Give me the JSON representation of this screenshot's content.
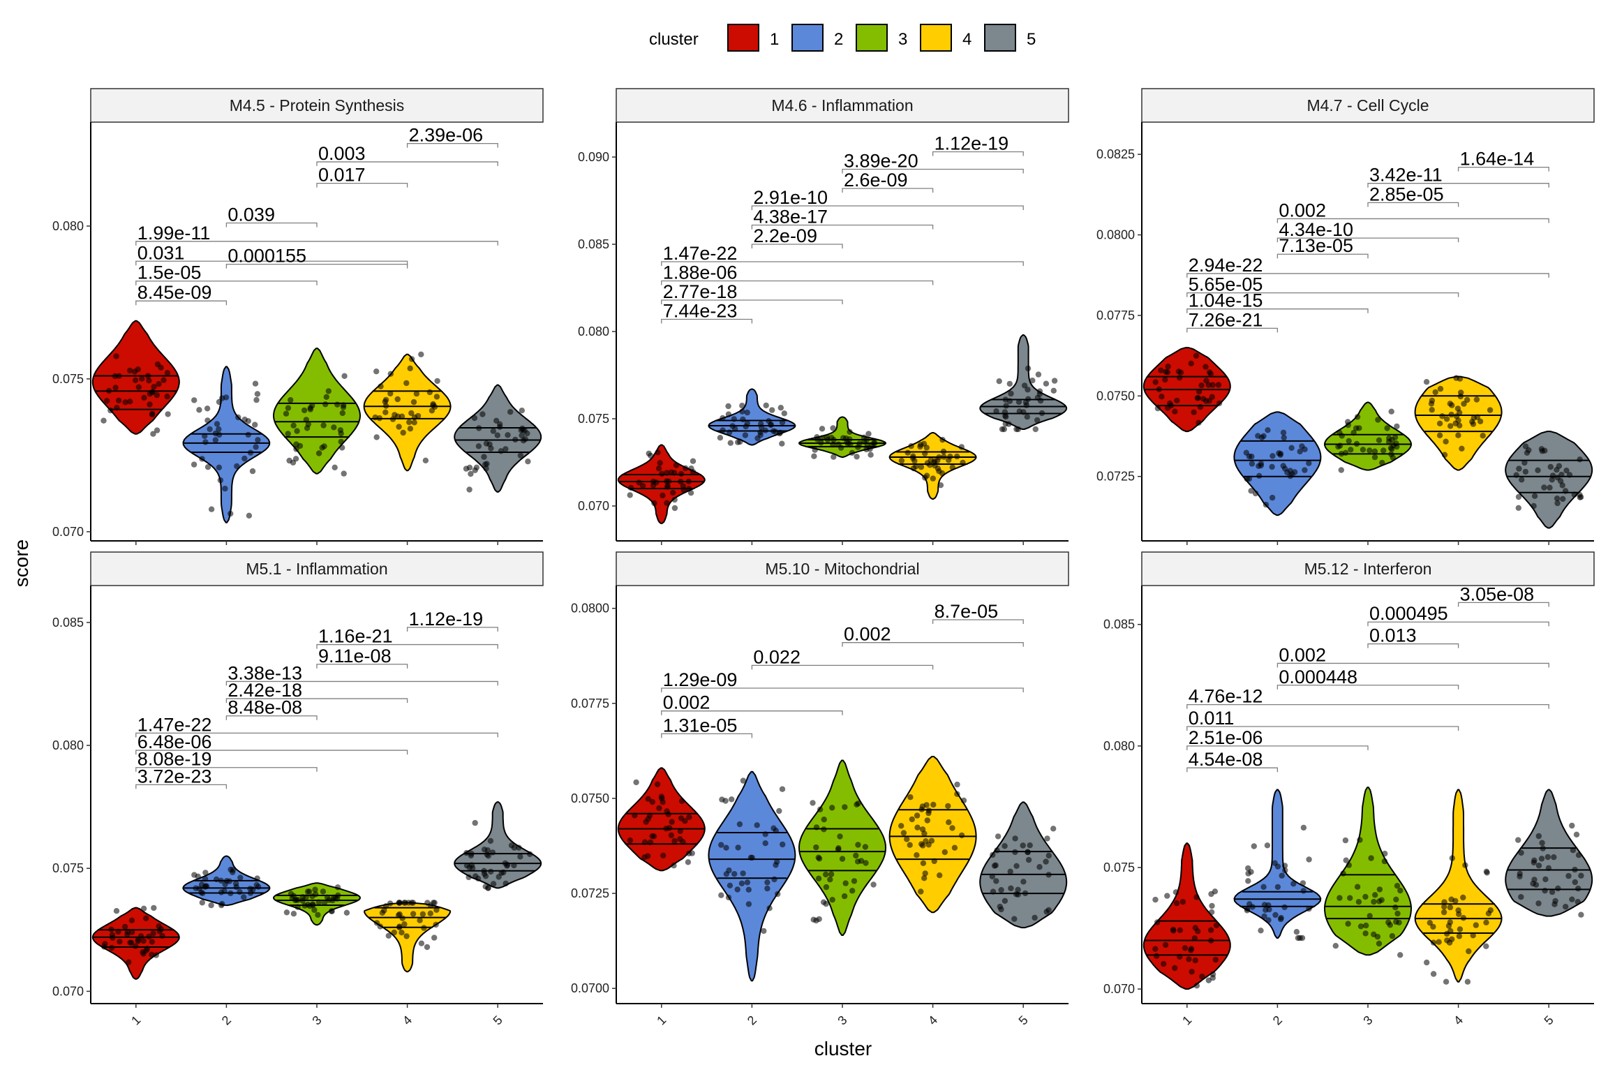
{
  "chart_data": {
    "type": "violin",
    "xlabel": "cluster",
    "ylabel": "score",
    "legend": {
      "title": "cluster",
      "position": "top",
      "entries": [
        {
          "label": "1",
          "color": "#CC0C00"
        },
        {
          "label": "2",
          "color": "#5C88DA"
        },
        {
          "label": "3",
          "color": "#84BD00"
        },
        {
          "label": "4",
          "color": "#FFCD00"
        },
        {
          "label": "5",
          "color": "#7C878E"
        }
      ]
    },
    "categories": [
      "1",
      "2",
      "3",
      "4",
      "5"
    ],
    "panels": [
      {
        "title": "M4.5 - Protein Synthesis",
        "ylim": [
          0.0697,
          0.0834
        ],
        "yticks": [
          0.07,
          0.075,
          0.08
        ],
        "ytick_labels": [
          "0.070",
          "0.075",
          "0.080"
        ],
        "violins": [
          {
            "cluster": "1",
            "min": 0.0732,
            "max": 0.0769,
            "q1": 0.074,
            "median": 0.0746,
            "q3": 0.0751,
            "mode": 0.0749
          },
          {
            "cluster": "2",
            "min": 0.0703,
            "max": 0.0754,
            "q1": 0.0726,
            "median": 0.0729,
            "q3": 0.0732,
            "mode": 0.0729
          },
          {
            "cluster": "3",
            "min": 0.0719,
            "max": 0.076,
            "q1": 0.0731,
            "median": 0.0736,
            "q3": 0.0742,
            "mode": 0.0738
          },
          {
            "cluster": "4",
            "min": 0.072,
            "max": 0.0758,
            "q1": 0.0737,
            "median": 0.0741,
            "q3": 0.0746,
            "mode": 0.0741
          },
          {
            "cluster": "5",
            "min": 0.0713,
            "max": 0.0748,
            "q1": 0.0726,
            "median": 0.073,
            "q3": 0.0734,
            "mode": 0.0731
          }
        ],
        "comparisons": [
          {
            "from": 1,
            "to": 2,
            "label": "8.45e-09",
            "y": 0.07755
          },
          {
            "from": 1,
            "to": 3,
            "label": "1.5e-05",
            "y": 0.0782
          },
          {
            "from": 1,
            "to": 4,
            "label": "0.031",
            "y": 0.07885
          },
          {
            "from": 1,
            "to": 5,
            "label": "1.99e-11",
            "y": 0.0795
          },
          {
            "from": 2,
            "to": 3,
            "label": "0.039",
            "y": 0.0801
          },
          {
            "from": 2,
            "to": 4,
            "label": "0.000155",
            "y": 0.07875
          },
          {
            "from": 3,
            "to": 4,
            "label": "0.017",
            "y": 0.0814
          },
          {
            "from": 3,
            "to": 5,
            "label": "0.003",
            "y": 0.0821
          },
          {
            "from": 4,
            "to": 5,
            "label": "2.39e-06",
            "y": 0.0827
          }
        ]
      },
      {
        "title": "M4.6 - Inflammation",
        "ylim": [
          0.068,
          0.092
        ],
        "yticks": [
          0.07,
          0.075,
          0.08,
          0.085,
          0.09
        ],
        "ytick_labels": [
          "0.070",
          "0.075",
          "0.080",
          "0.085",
          "0.090"
        ],
        "violins": [
          {
            "cluster": "1",
            "min": 0.069,
            "max": 0.0735,
            "q1": 0.071,
            "median": 0.0714,
            "q3": 0.0718,
            "mode": 0.0715
          },
          {
            "cluster": "2",
            "min": 0.0735,
            "max": 0.0767,
            "q1": 0.0743,
            "median": 0.0746,
            "q3": 0.0749,
            "mode": 0.0746
          },
          {
            "cluster": "3",
            "min": 0.0728,
            "max": 0.0751,
            "q1": 0.0734,
            "median": 0.0736,
            "q3": 0.0738,
            "mode": 0.0736
          },
          {
            "cluster": "4",
            "min": 0.0704,
            "max": 0.0742,
            "q1": 0.0724,
            "median": 0.0728,
            "q3": 0.0731,
            "mode": 0.0728
          },
          {
            "cluster": "5",
            "min": 0.0744,
            "max": 0.0798,
            "q1": 0.0753,
            "median": 0.0757,
            "q3": 0.0761,
            "mode": 0.0756
          }
        ],
        "comparisons": [
          {
            "from": 1,
            "to": 2,
            "label": "7.44e-23",
            "y": 0.0807
          },
          {
            "from": 1,
            "to": 3,
            "label": "2.77e-18",
            "y": 0.0818
          },
          {
            "from": 1,
            "to": 4,
            "label": "1.88e-06",
            "y": 0.0829
          },
          {
            "from": 1,
            "to": 5,
            "label": "1.47e-22",
            "y": 0.084
          },
          {
            "from": 2,
            "to": 3,
            "label": "2.2e-09",
            "y": 0.085
          },
          {
            "from": 2,
            "to": 4,
            "label": "4.38e-17",
            "y": 0.0861
          },
          {
            "from": 2,
            "to": 5,
            "label": "2.91e-10",
            "y": 0.0872
          },
          {
            "from": 3,
            "to": 4,
            "label": "2.6e-09",
            "y": 0.0882
          },
          {
            "from": 3,
            "to": 5,
            "label": "3.89e-20",
            "y": 0.0893
          },
          {
            "from": 4,
            "to": 5,
            "label": "1.12e-19",
            "y": 0.0903
          }
        ]
      },
      {
        "title": "M4.7 - Cell Cycle",
        "ylim": [
          0.0705,
          0.0835
        ],
        "yticks": [
          0.0725,
          0.075,
          0.0775,
          0.08,
          0.0825
        ],
        "ytick_labels": [
          "0.0725",
          "0.0750",
          "0.0775",
          "0.0800",
          "0.0825"
        ],
        "violins": [
          {
            "cluster": "1",
            "min": 0.0739,
            "max": 0.0765,
            "q1": 0.0747,
            "median": 0.0752,
            "q3": 0.0756,
            "mode": 0.0753
          },
          {
            "cluster": "2",
            "min": 0.0713,
            "max": 0.0745,
            "q1": 0.0725,
            "median": 0.073,
            "q3": 0.0736,
            "mode": 0.0731
          },
          {
            "cluster": "3",
            "min": 0.0727,
            "max": 0.0748,
            "q1": 0.0732,
            "median": 0.0735,
            "q3": 0.0738,
            "mode": 0.0735
          },
          {
            "cluster": "4",
            "min": 0.0727,
            "max": 0.0756,
            "q1": 0.0739,
            "median": 0.0744,
            "q3": 0.075,
            "mode": 0.0745
          },
          {
            "cluster": "5",
            "min": 0.0709,
            "max": 0.0739,
            "q1": 0.072,
            "median": 0.0725,
            "q3": 0.073,
            "mode": 0.0727
          }
        ],
        "comparisons": [
          {
            "from": 1,
            "to": 2,
            "label": "7.26e-21",
            "y": 0.0771
          },
          {
            "from": 1,
            "to": 3,
            "label": "1.04e-15",
            "y": 0.0777
          },
          {
            "from": 1,
            "to": 4,
            "label": "5.65e-05",
            "y": 0.0782
          },
          {
            "from": 1,
            "to": 5,
            "label": "2.94e-22",
            "y": 0.0788
          },
          {
            "from": 2,
            "to": 3,
            "label": "7.13e-05",
            "y": 0.0794
          },
          {
            "from": 2,
            "to": 4,
            "label": "4.34e-10",
            "y": 0.0799
          },
          {
            "from": 2,
            "to": 5,
            "label": "0.002",
            "y": 0.0805
          },
          {
            "from": 3,
            "to": 4,
            "label": "2.85e-05",
            "y": 0.081
          },
          {
            "from": 3,
            "to": 5,
            "label": "3.42e-11",
            "y": 0.0816
          },
          {
            "from": 4,
            "to": 5,
            "label": "1.64e-14",
            "y": 0.0821
          }
        ]
      },
      {
        "title": "M5.1 - Inflammation",
        "ylim": [
          0.0695,
          0.0865
        ],
        "yticks": [
          0.07,
          0.075,
          0.08,
          0.085
        ],
        "ytick_labels": [
          "0.070",
          "0.075",
          "0.080",
          "0.085"
        ],
        "violins": [
          {
            "cluster": "1",
            "min": 0.0705,
            "max": 0.0734,
            "q1": 0.0718,
            "median": 0.0722,
            "q3": 0.0725,
            "mode": 0.0722
          },
          {
            "cluster": "2",
            "min": 0.0735,
            "max": 0.0755,
            "q1": 0.074,
            "median": 0.0742,
            "q3": 0.0745,
            "mode": 0.0742
          },
          {
            "cluster": "3",
            "min": 0.0727,
            "max": 0.0744,
            "q1": 0.0735,
            "median": 0.0737,
            "q3": 0.0739,
            "mode": 0.0738
          },
          {
            "cluster": "4",
            "min": 0.0708,
            "max": 0.0736,
            "q1": 0.0726,
            "median": 0.073,
            "q3": 0.0734,
            "mode": 0.0733
          },
          {
            "cluster": "5",
            "min": 0.0742,
            "max": 0.0777,
            "q1": 0.0749,
            "median": 0.0752,
            "q3": 0.0756,
            "mode": 0.0752
          }
        ],
        "comparisons": [
          {
            "from": 1,
            "to": 2,
            "label": "3.72e-23",
            "y": 0.0784
          },
          {
            "from": 1,
            "to": 3,
            "label": "8.08e-19",
            "y": 0.0791
          },
          {
            "from": 1,
            "to": 4,
            "label": "6.48e-06",
            "y": 0.0798
          },
          {
            "from": 1,
            "to": 5,
            "label": "1.47e-22",
            "y": 0.0805
          },
          {
            "from": 2,
            "to": 3,
            "label": "8.48e-08",
            "y": 0.0812
          },
          {
            "from": 2,
            "to": 4,
            "label": "2.42e-18",
            "y": 0.0819
          },
          {
            "from": 2,
            "to": 5,
            "label": "3.38e-13",
            "y": 0.0826
          },
          {
            "from": 3,
            "to": 4,
            "label": "9.11e-08",
            "y": 0.0833
          },
          {
            "from": 3,
            "to": 5,
            "label": "1.16e-21",
            "y": 0.0841
          },
          {
            "from": 4,
            "to": 5,
            "label": "1.12e-19",
            "y": 0.0848
          }
        ]
      },
      {
        "title": "M5.10 - Mitochondrial",
        "ylim": [
          0.0696,
          0.0806
        ],
        "yticks": [
          0.07,
          0.0725,
          0.075,
          0.0775,
          0.08
        ],
        "ytick_labels": [
          "0.0700",
          "0.0725",
          "0.0750",
          "0.0775",
          "0.0800"
        ],
        "violins": [
          {
            "cluster": "1",
            "min": 0.0731,
            "max": 0.0758,
            "q1": 0.0738,
            "median": 0.0742,
            "q3": 0.0746,
            "mode": 0.0742
          },
          {
            "cluster": "2",
            "min": 0.0702,
            "max": 0.0757,
            "q1": 0.0729,
            "median": 0.0734,
            "q3": 0.0741,
            "mode": 0.0735
          },
          {
            "cluster": "3",
            "min": 0.0714,
            "max": 0.076,
            "q1": 0.0731,
            "median": 0.0736,
            "q3": 0.0742,
            "mode": 0.0737
          },
          {
            "cluster": "4",
            "min": 0.072,
            "max": 0.0761,
            "q1": 0.0734,
            "median": 0.074,
            "q3": 0.0747,
            "mode": 0.074
          },
          {
            "cluster": "5",
            "min": 0.0716,
            "max": 0.0749,
            "q1": 0.0725,
            "median": 0.073,
            "q3": 0.0736,
            "mode": 0.0728
          }
        ],
        "comparisons": [
          {
            "from": 1,
            "to": 2,
            "label": "1.31e-05",
            "y": 0.0767
          },
          {
            "from": 1,
            "to": 3,
            "label": "0.002",
            "y": 0.0773
          },
          {
            "from": 1,
            "to": 5,
            "label": "1.29e-09",
            "y": 0.0779
          },
          {
            "from": 2,
            "to": 4,
            "label": "0.022",
            "y": 0.0785
          },
          {
            "from": 3,
            "to": 5,
            "label": "0.002",
            "y": 0.0791
          },
          {
            "from": 4,
            "to": 5,
            "label": "8.7e-05",
            "y": 0.0797
          }
        ]
      },
      {
        "title": "M5.12 - Interferon",
        "ylim": [
          0.0694,
          0.0866
        ],
        "yticks": [
          0.07,
          0.075,
          0.08,
          0.085
        ],
        "ytick_labels": [
          "0.070",
          "0.075",
          "0.080",
          "0.085"
        ],
        "violins": [
          {
            "cluster": "1",
            "min": 0.07,
            "max": 0.076,
            "q1": 0.0714,
            "median": 0.072,
            "q3": 0.0728,
            "mode": 0.0718
          },
          {
            "cluster": "2",
            "min": 0.0721,
            "max": 0.0782,
            "q1": 0.0734,
            "median": 0.0737,
            "q3": 0.074,
            "mode": 0.0737
          },
          {
            "cluster": "3",
            "min": 0.0714,
            "max": 0.0783,
            "q1": 0.0729,
            "median": 0.0734,
            "q3": 0.0747,
            "mode": 0.0733
          },
          {
            "cluster": "4",
            "min": 0.0703,
            "max": 0.0782,
            "q1": 0.0723,
            "median": 0.0729,
            "q3": 0.0735,
            "mode": 0.0729
          },
          {
            "cluster": "5",
            "min": 0.073,
            "max": 0.0782,
            "q1": 0.0741,
            "median": 0.0749,
            "q3": 0.0758,
            "mode": 0.0745
          }
        ],
        "comparisons": [
          {
            "from": 1,
            "to": 2,
            "label": "4.54e-08",
            "y": 0.0791
          },
          {
            "from": 1,
            "to": 3,
            "label": "2.51e-06",
            "y": 0.08
          },
          {
            "from": 1,
            "to": 4,
            "label": "0.011",
            "y": 0.0808
          },
          {
            "from": 1,
            "to": 5,
            "label": "4.76e-12",
            "y": 0.0817
          },
          {
            "from": 2,
            "to": 4,
            "label": "0.000448",
            "y": 0.0825
          },
          {
            "from": 2,
            "to": 5,
            "label": "0.002",
            "y": 0.0834
          },
          {
            "from": 3,
            "to": 4,
            "label": "0.013",
            "y": 0.0842
          },
          {
            "from": 3,
            "to": 5,
            "label": "0.000495",
            "y": 0.0851
          },
          {
            "from": 4,
            "to": 5,
            "label": "3.05e-08",
            "y": 0.0859
          }
        ]
      }
    ]
  }
}
